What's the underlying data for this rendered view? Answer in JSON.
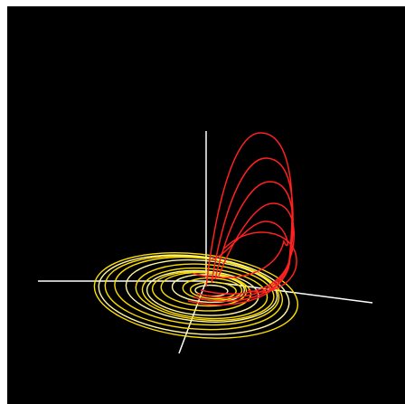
{
  "scene": {
    "background": "#000000",
    "frame_color": "#ffffff",
    "axis_color": "#ffffff",
    "spiral_color": "#ffe000",
    "spiral_highlight": "#fff8a0",
    "loop_color": "#ff2020",
    "loop_turns": 4,
    "spiral_turns": 7
  }
}
